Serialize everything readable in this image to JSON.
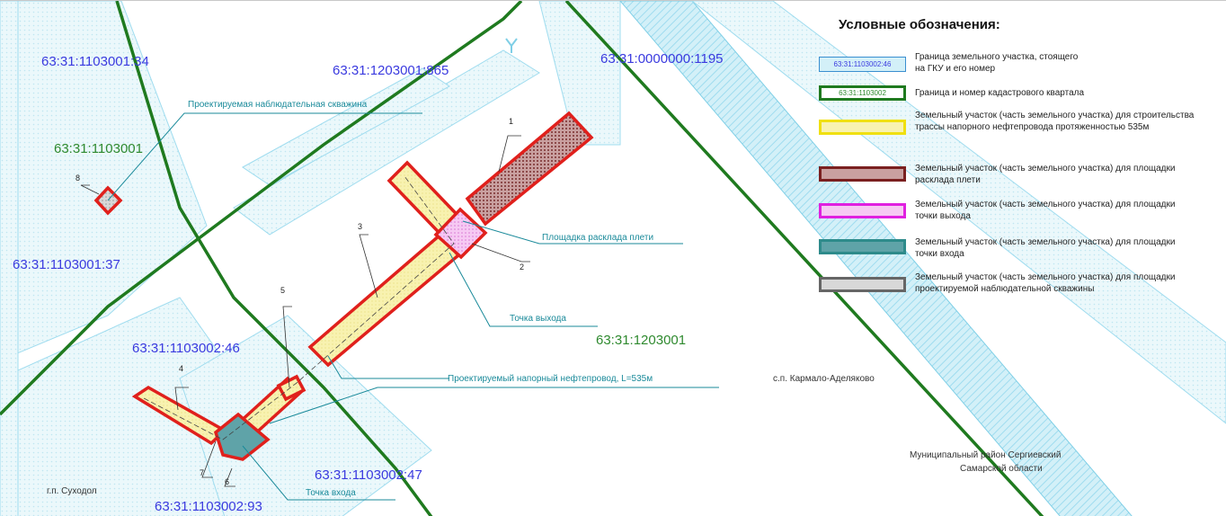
{
  "colors": {
    "parcel_blue": "#8fd8ec",
    "quarter_green": "#1f7a1f",
    "route_yellow": "#f6f0a0",
    "parcel_red": "#e0201c",
    "platform_brown": "#8b3a3a",
    "platform_magenta": "#e040e0",
    "platform_teal": "#2e8b8b",
    "well_gray": "#8a8a8a"
  },
  "legend": {
    "title": "Условные обозначения:",
    "items": [
      {
        "sample": "63:31:1103002:46",
        "text": "Граница земельного участка, стоящего на ГКУ и его номер"
      },
      {
        "sample": "63:31:1103002",
        "text": "Граница и номер кадастрового квартала"
      },
      {
        "sample": "",
        "text": "Земельный участок (часть земельного участка) для строительства трассы напорного нефтепровода протяженностью 535м"
      },
      {
        "sample": "",
        "text": "Земельный участок (часть земельного участка) для площадки расклада плети"
      },
      {
        "sample": "",
        "text": "Земельный участок (часть земельного участка) для площадки точки выхода"
      },
      {
        "sample": "",
        "text": "Земельный участок (часть земельного участка) для площадки точки входа"
      },
      {
        "sample": "",
        "text": "Земельный участок (часть земельного участка) для площадки проектируемой наблюдательной скважины"
      }
    ]
  },
  "parcel_labels": [
    "63:31:1103001:34",
    "63:31:1203001:865",
    "63:31:0000000:1195",
    "63:31:1103001:37",
    "63:31:1103002:46",
    "63:31:1103002:47",
    "63:31:1103002:93"
  ],
  "quarter_labels": [
    "63:31:1103001",
    "63:31:1203001"
  ],
  "callouts": [
    "Проектируемая наблюдательная скважина",
    "Площадка расклада плети",
    "Точка выхода",
    "Проектируемый напорный нефтепровод, L=535м",
    "Точка входа"
  ],
  "numbers": [
    "1",
    "2",
    "3",
    "4",
    "5",
    "6",
    "7",
    "8"
  ],
  "settlements": [
    "с.п. Кармало-Аделяково",
    "Муниципальный район Сергиевский",
    "Самарской области",
    "г.п. Суходол"
  ]
}
